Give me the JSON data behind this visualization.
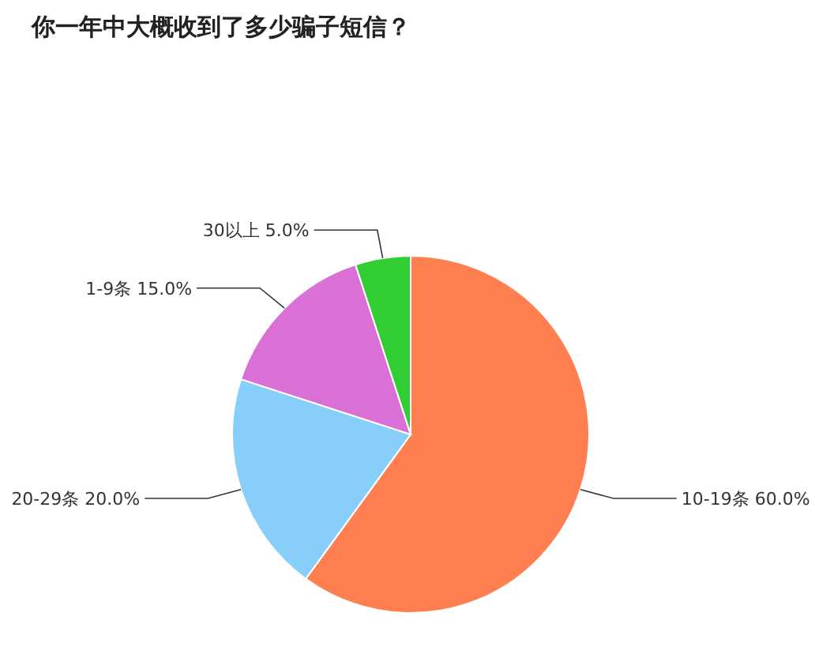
{
  "chart_data": {
    "type": "pie",
    "title": "你一年中大概收到了多少骗子短信？",
    "categories": [
      "10-19条",
      "20-29条",
      "1-9条",
      "30以上"
    ],
    "values": [
      60,
      20,
      15,
      5
    ],
    "value_labels": [
      "60.0%",
      "20.0%",
      "15.0%",
      "5.0%"
    ],
    "colors": [
      "#ff7f50",
      "#87cefa",
      "#da70d6",
      "#32cd32"
    ],
    "legend": false
  }
}
